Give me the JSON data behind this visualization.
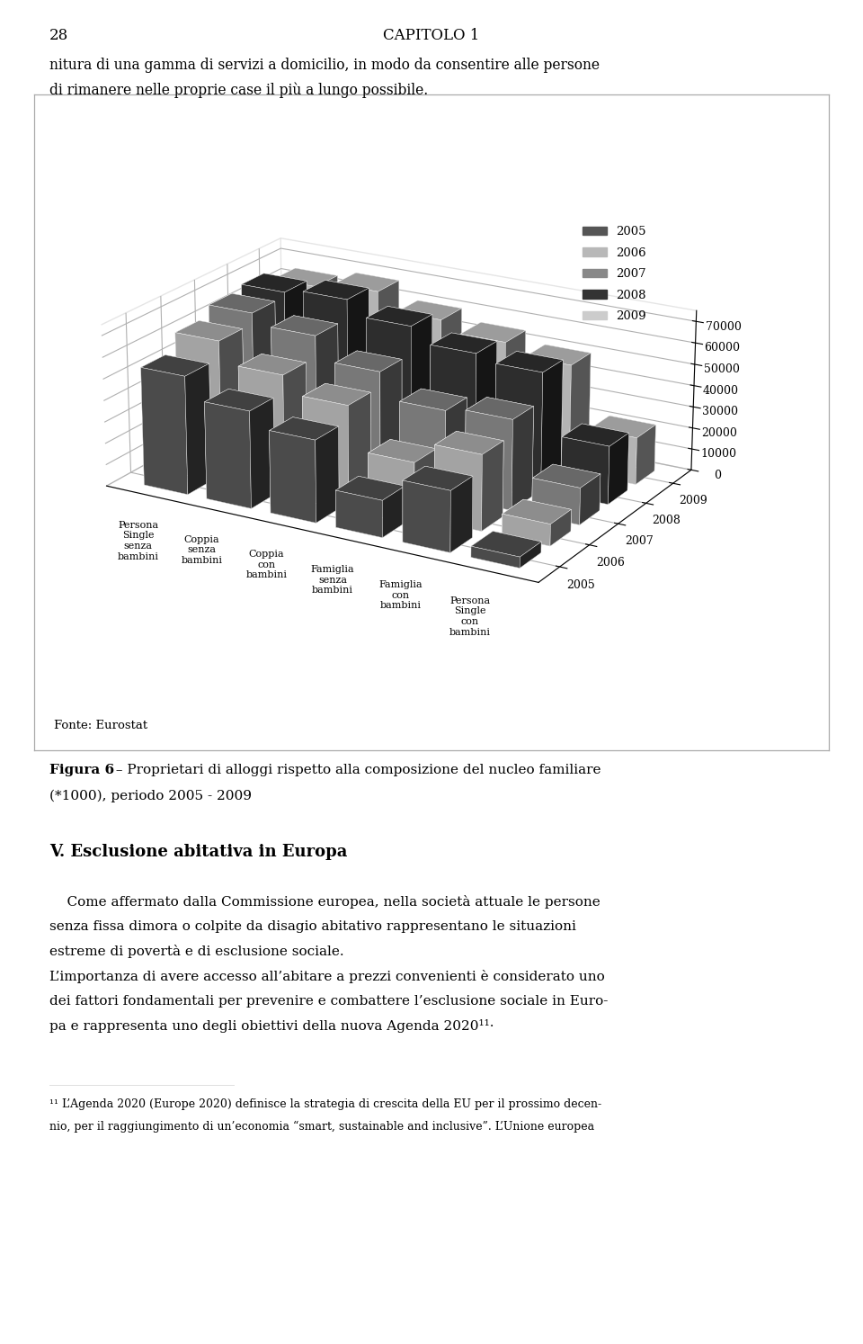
{
  "page_number": "28",
  "chapter_header": "CAPITOLO 1",
  "intro_line1": "nitura di una gamma di servizi a domicilio, in modo da consentire alle persone",
  "intro_line2": "di rimanere nelle proprie case il più a lungo possibile.",
  "categories": [
    "Persona\nSingle\nsenza\nbambini",
    "Coppia\nsenza\nbambini",
    "Coppia\ncon\nbambini",
    "Famiglia\nsenza\nbambini",
    "Famiglia\ncon\nbambini",
    "Persona\nSingle\ncon\nbambini"
  ],
  "years": [
    2005,
    2006,
    2007,
    2008,
    2009
  ],
  "data_values": [
    [
      55000,
      63000,
      68000,
      70000,
      65000
    ],
    [
      45000,
      53000,
      63000,
      72000,
      68000
    ],
    [
      38000,
      45000,
      52000,
      65000,
      60000
    ],
    [
      17000,
      25000,
      40000,
      58000,
      55000
    ],
    [
      28000,
      35000,
      42000,
      55000,
      50000
    ],
    [
      5000,
      10000,
      17000,
      27000,
      22000
    ]
  ],
  "year_colors_front_to_back": [
    "#555555",
    "#b8b8b8",
    "#888888",
    "#333333",
    "#cccccc"
  ],
  "yticks": [
    0,
    10000,
    20000,
    30000,
    40000,
    50000,
    60000,
    70000
  ],
  "fonte_text": "Fonte: Eurostat",
  "fig_bold": "Figura 6",
  "fig_rest": " – Proprietari di alloggi rispetto alla composizione del nucleo familiare",
  "fig_line2": "(*1000), periodo 2005 - 2009",
  "section_title": "V. Esclusione abitativa in Europa",
  "body_lines": [
    "    Come affermato dalla Commissione europea, nella società attuale le persone",
    "senza fissa dimora o colpite da disagio abitativo rappresentano le situazioni",
    "estreme di povertà e di esclusione sociale.",
    "L’importanza di avere accesso all’abitare a prezzi convenienti è considerato uno",
    "dei fattori fondamentali per prevenire e combattere l’esclusione sociale in Euro-",
    "pa e rappresenta uno degli obiettivi della nuova Agenda 2020¹¹·"
  ],
  "footnote_line1": "¹¹ L’Agenda 2020 (Europe 2020) definisce la strategia di crescita della EU per il prossimo decen-",
  "footnote_line2": "nio, per il raggiungimento di un’economia “smart, sustainable and inclusive”. L’Unione europea"
}
